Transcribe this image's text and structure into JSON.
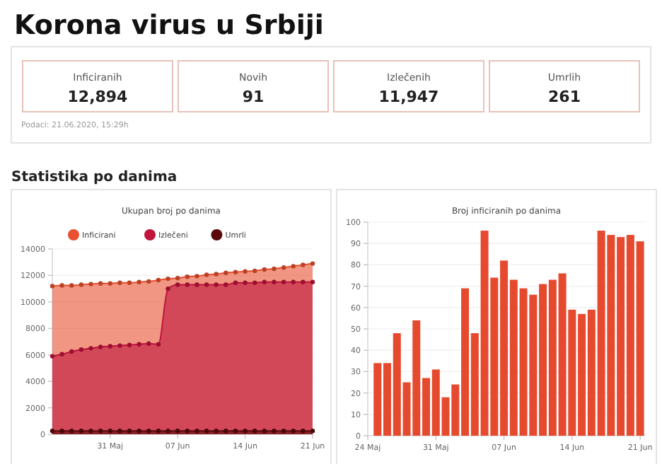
{
  "chart_data": [
    {
      "type": "other",
      "title": "Korona virus u Srbiji",
      "categories": [
        "Inficiranih",
        "Novih",
        "Izlečenih",
        "Umrlih"
      ],
      "values": [
        12894,
        91,
        11947,
        261
      ],
      "value_labels": [
        "12,894",
        "91",
        "11,947",
        "261"
      ],
      "annotations": [
        "Podaci: 21.06.2020, 15:29h",
        "Statistika po danima"
      ]
    },
    {
      "type": "area",
      "title": "Ukupan broj po danima",
      "x": [
        "2020-05-25",
        "2020-05-26",
        "2020-05-27",
        "2020-05-28",
        "2020-05-29",
        "2020-05-30",
        "2020-05-31",
        "2020-06-01",
        "2020-06-02",
        "2020-06-03",
        "2020-06-04",
        "2020-06-05",
        "2020-06-06",
        "2020-06-07",
        "2020-06-08",
        "2020-06-09",
        "2020-06-10",
        "2020-06-11",
        "2020-06-12",
        "2020-06-13",
        "2020-06-14",
        "2020-06-15",
        "2020-06-16",
        "2020-06-17",
        "2020-06-18",
        "2020-06-19",
        "2020-06-20",
        "2020-06-21"
      ],
      "series": [
        {
          "name": "Inficirani",
          "color": "#e8502f",
          "values": [
            11200,
            11250,
            11250,
            11300,
            11350,
            11400,
            11400,
            11450,
            11450,
            11500,
            11550,
            11650,
            11750,
            11800,
            11900,
            11950,
            12050,
            12100,
            12200,
            12250,
            12300,
            12350,
            12450,
            12500,
            12600,
            12700,
            12800,
            12900
          ]
        },
        {
          "name": "Izlečeni",
          "color": "#c0143c",
          "values": [
            5900,
            6050,
            6250,
            6400,
            6500,
            6600,
            6650,
            6700,
            6750,
            6800,
            6850,
            6800,
            11000,
            11300,
            11300,
            11300,
            11300,
            11300,
            11300,
            11450,
            11450,
            11450,
            11500,
            11500,
            11500,
            11500,
            11500,
            11500
          ]
        },
        {
          "name": "Umrli",
          "color": "#5a0a0a",
          "values": [
            250,
            250,
            250,
            250,
            250,
            250,
            250,
            250,
            250,
            250,
            250,
            250,
            250,
            250,
            250,
            250,
            250,
            250,
            250,
            250,
            250,
            250,
            250,
            250,
            250,
            250,
            250,
            250
          ]
        }
      ],
      "xlim": [
        "2020-05-25",
        "2020-06-21"
      ],
      "xticks": [
        {
          "value": "2020-05-31",
          "label": "31 Maj"
        },
        {
          "value": "2020-06-07",
          "label": "07 Jun"
        },
        {
          "value": "2020-06-14",
          "label": "14 Jun"
        },
        {
          "value": "2020-06-21",
          "label": "21 Jun"
        }
      ],
      "ylim": [
        0,
        14000
      ],
      "yticks": [
        0,
        2000,
        4000,
        6000,
        8000,
        10000,
        12000,
        14000
      ],
      "grid": "y",
      "legend": "top",
      "marker": "circle"
    },
    {
      "type": "bar",
      "title": "Broj inficiranih po danima",
      "x": [
        "2020-05-25",
        "2020-05-26",
        "2020-05-27",
        "2020-05-28",
        "2020-05-29",
        "2020-05-30",
        "2020-05-31",
        "2020-06-01",
        "2020-06-02",
        "2020-06-03",
        "2020-06-04",
        "2020-06-05",
        "2020-06-06",
        "2020-06-07",
        "2020-06-08",
        "2020-06-09",
        "2020-06-10",
        "2020-06-11",
        "2020-06-12",
        "2020-06-13",
        "2020-06-14",
        "2020-06-15",
        "2020-06-16",
        "2020-06-17",
        "2020-06-18",
        "2020-06-19",
        "2020-06-20",
        "2020-06-21"
      ],
      "values": [
        34,
        34,
        48,
        25,
        54,
        27,
        31,
        18,
        24,
        69,
        48,
        96,
        74,
        82,
        73,
        69,
        66,
        71,
        73,
        76,
        59,
        57,
        59,
        96,
        94,
        93,
        94,
        91
      ],
      "color": "#e64a2e",
      "xlim": [
        "2020-05-24",
        "2020-06-21T12:00"
      ],
      "xticks": [
        {
          "value": "2020-05-24",
          "label": "24 Maj"
        },
        {
          "value": "2020-05-31",
          "label": "31 Maj"
        },
        {
          "value": "2020-06-07",
          "label": "07 Jun"
        },
        {
          "value": "2020-06-14",
          "label": "14 Jun"
        },
        {
          "value": "2020-06-21",
          "label": "21 Jun"
        }
      ],
      "ylim": [
        0,
        100
      ],
      "yticks": [
        0,
        10,
        20,
        30,
        40,
        50,
        60,
        70,
        80,
        90,
        100
      ],
      "grid": "y"
    }
  ]
}
